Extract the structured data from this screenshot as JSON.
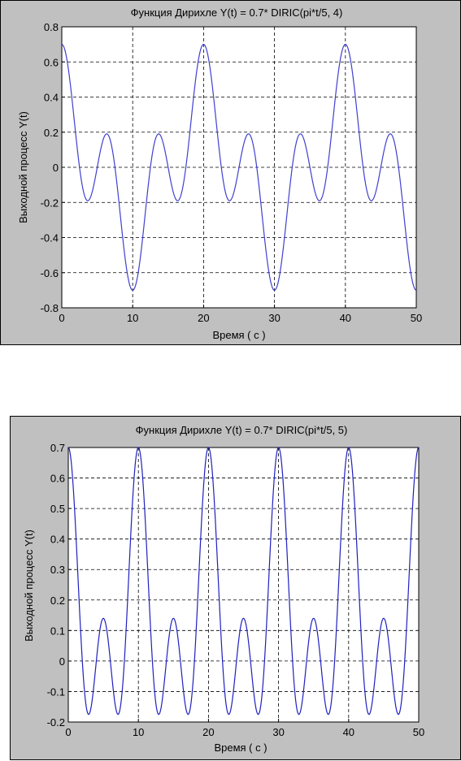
{
  "chart_data": [
    {
      "type": "line",
      "title": "Функция Дирихле  Y(t) = 0.7* DIRIC(pi*t/5, 4)",
      "xlabel": "Время ( с )",
      "ylabel": "Выходной процесс Y(t)",
      "xlim": [
        0,
        50
      ],
      "ylim": [
        -0.8,
        0.8
      ],
      "x_ticks": [
        "0",
        "10",
        "20",
        "30",
        "40",
        "50"
      ],
      "y_ticks": [
        "-0.8",
        "-0.6",
        "-0.4",
        "-0.2",
        "0",
        "0.2",
        "0.4",
        "0.6",
        "0.8"
      ],
      "grid": true,
      "line_color": "#4040d0",
      "formula": {
        "amplitude": 0.7,
        "n": 4,
        "omega": 0.6283185307
      },
      "x": [
        0,
        3.5,
        6.25,
        10,
        13.75,
        16.5,
        20,
        23.5,
        26.25,
        30,
        33.75,
        36.5,
        40,
        43.5,
        46.25,
        50
      ],
      "values": [
        0.7,
        -0.19,
        0.19,
        -0.7,
        0.19,
        -0.19,
        0.7,
        -0.19,
        0.19,
        -0.7,
        0.19,
        -0.19,
        0.7,
        -0.19,
        0.19,
        -0.7
      ]
    },
    {
      "type": "line",
      "title": "Функция Дирихле  Y(t) = 0.7* DIRIC(pi*t/5, 5)",
      "xlabel": "Время ( с )",
      "ylabel": "Выходной процесс Y(t)",
      "xlim": [
        0,
        50
      ],
      "ylim": [
        -0.2,
        0.7
      ],
      "x_ticks": [
        "0",
        "10",
        "20",
        "30",
        "40",
        "50"
      ],
      "y_ticks": [
        "-0.2",
        "-0.1",
        "0",
        "0.1",
        "0.2",
        "0.3",
        "0.4",
        "0.5",
        "0.6",
        "0.7"
      ],
      "grid": true,
      "line_color": "#2020c0",
      "formula": {
        "amplitude": 0.7,
        "n": 5,
        "omega": 0.6283185307
      },
      "x": [
        0,
        2.9,
        5,
        7.1,
        10,
        12.9,
        15,
        17.1,
        20,
        22.9,
        25,
        27.1,
        30,
        32.9,
        35,
        37.1,
        40,
        42.9,
        45,
        47.1,
        50
      ],
      "values": [
        0.7,
        -0.18,
        0.14,
        -0.18,
        0.7,
        -0.18,
        0.14,
        -0.18,
        0.7,
        -0.18,
        0.14,
        -0.18,
        0.7,
        -0.18,
        0.14,
        -0.18,
        0.7,
        -0.18,
        0.14,
        -0.18,
        0.7
      ]
    }
  ]
}
